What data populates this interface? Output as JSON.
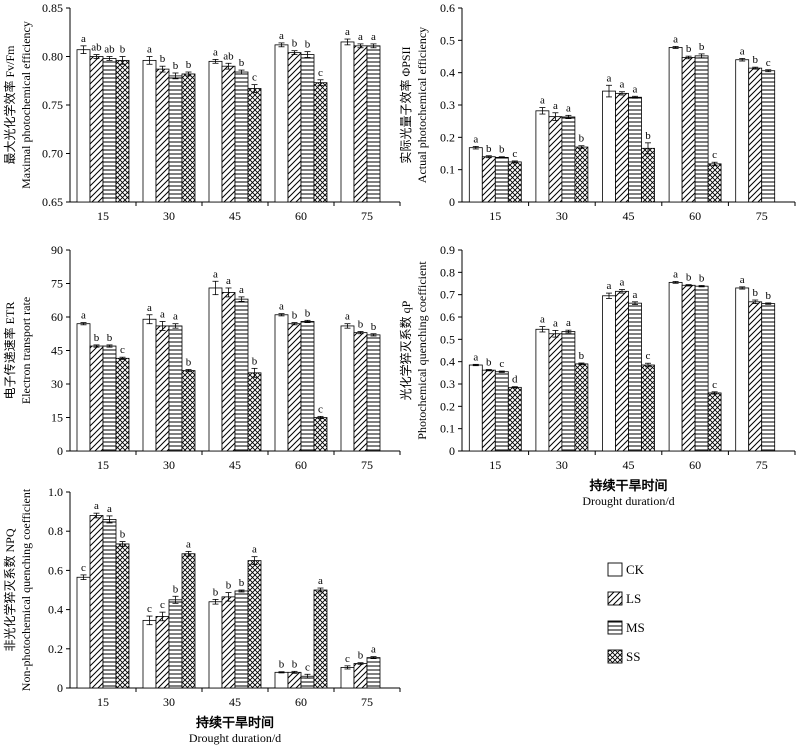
{
  "chart_data": [
    {
      "id": "fvfm",
      "type": "bar",
      "ylabel_cn": "最大光化学效率 Fv/Fm",
      "ylabel_en": "Maximal photochemical efficiency",
      "categories": [
        "15",
        "30",
        "45",
        "60",
        "75"
      ],
      "ylim": [
        0.65,
        0.85
      ],
      "yticks": [
        "0.65",
        "0.70",
        "0.75",
        "0.80",
        "0.85"
      ],
      "series": [
        {
          "name": "CK",
          "values": [
            0.807,
            0.796,
            0.795,
            0.812,
            0.815
          ],
          "err": [
            0.004,
            0.004,
            0.002,
            0.002,
            0.003
          ],
          "sig": [
            "a",
            "a",
            "a",
            "a",
            "a"
          ]
        },
        {
          "name": "LS",
          "values": [
            0.8,
            0.787,
            0.79,
            0.804,
            0.811
          ],
          "err": [
            0.002,
            0.003,
            0.003,
            0.002,
            0.002
          ],
          "sig": [
            "ab",
            "b",
            "ab",
            "b",
            "a"
          ]
        },
        {
          "name": "MS",
          "values": [
            0.798,
            0.78,
            0.784,
            0.802,
            0.811
          ],
          "err": [
            0.002,
            0.003,
            0.002,
            0.003,
            0.002
          ],
          "sig": [
            "ab",
            "b",
            "b",
            "b",
            "a"
          ]
        },
        {
          "name": "SS",
          "values": [
            0.796,
            0.782,
            0.767,
            0.773,
            null
          ],
          "err": [
            0.004,
            0.002,
            0.004,
            0.003,
            null
          ],
          "sig": [
            "b",
            "b",
            "c",
            "c",
            ""
          ]
        }
      ]
    },
    {
      "id": "phipsii",
      "type": "bar",
      "ylabel_cn": "实际光量子效率 ΦPSII",
      "ylabel_en": "Actual photochemical efficiency",
      "categories": [
        "15",
        "30",
        "45",
        "60",
        "75"
      ],
      "ylim": [
        0,
        0.6
      ],
      "yticks": [
        "0",
        "0.1",
        "0.2",
        "0.3",
        "0.4",
        "0.5",
        "0.6"
      ],
      "series": [
        {
          "name": "CK",
          "values": [
            0.168,
            0.282,
            0.343,
            0.478,
            0.44
          ],
          "err": [
            0.004,
            0.01,
            0.018,
            0.003,
            0.004
          ],
          "sig": [
            "a",
            "a",
            "a",
            "a",
            "a"
          ]
        },
        {
          "name": "LS",
          "values": [
            0.14,
            0.264,
            0.336,
            0.447,
            0.414
          ],
          "err": [
            0.003,
            0.012,
            0.005,
            0.004,
            0.003
          ],
          "sig": [
            "b",
            "a",
            "a",
            "b",
            "b"
          ]
        },
        {
          "name": "MS",
          "values": [
            0.138,
            0.263,
            0.324,
            0.452,
            0.406
          ],
          "err": [
            0.002,
            0.005,
            0.003,
            0.006,
            0.003
          ],
          "sig": [
            "b",
            "a",
            "a",
            "b",
            "c"
          ]
        },
        {
          "name": "SS",
          "values": [
            0.124,
            0.17,
            0.166,
            0.118,
            null
          ],
          "err": [
            0.003,
            0.004,
            0.017,
            0.005,
            null
          ],
          "sig": [
            "c",
            "b",
            "b",
            "c",
            ""
          ]
        }
      ]
    },
    {
      "id": "etr",
      "type": "bar",
      "ylabel_cn": "电子传递速率 ETR",
      "ylabel_en": "Electron transport rate",
      "categories": [
        "15",
        "30",
        "45",
        "60",
        "75"
      ],
      "ylim": [
        0,
        90
      ],
      "yticks": [
        "0",
        "15",
        "30",
        "45",
        "60",
        "75",
        "90"
      ],
      "series": [
        {
          "name": "CK",
          "values": [
            57,
            59,
            73,
            61,
            56
          ],
          "err": [
            0.5,
            2,
            3,
            0.5,
            1
          ],
          "sig": [
            "a",
            "a",
            "a",
            "a",
            "a"
          ]
        },
        {
          "name": "LS",
          "values": [
            47,
            56,
            71,
            57,
            53
          ],
          "err": [
            0.5,
            2,
            2,
            0.5,
            0.5
          ],
          "sig": [
            "b",
            "a",
            "a",
            "b",
            "b"
          ]
        },
        {
          "name": "MS",
          "values": [
            47,
            56,
            68,
            58,
            52
          ],
          "err": [
            0.5,
            1,
            1,
            0.5,
            0.5
          ],
          "sig": [
            "b",
            "a",
            "a",
            "b",
            "b"
          ]
        },
        {
          "name": "SS",
          "values": [
            41.5,
            36,
            35,
            15,
            null
          ],
          "err": [
            0.5,
            0.5,
            2,
            0.5,
            null
          ],
          "sig": [
            "c",
            "b",
            "b",
            "c",
            ""
          ]
        }
      ]
    },
    {
      "id": "qp",
      "type": "bar",
      "ylabel_cn": "光化学猝灭系数 qP",
      "ylabel_en": "Photochemical quenching coefficient",
      "categories": [
        "15",
        "30",
        "45",
        "60",
        "75"
      ],
      "ylim": [
        0,
        0.9
      ],
      "yticks": [
        "0",
        "0.1",
        "0.2",
        "0.3",
        "0.4",
        "0.5",
        "0.6",
        "0.7",
        "0.8",
        "0.9"
      ],
      "series": [
        {
          "name": "CK",
          "values": [
            0.385,
            0.545,
            0.695,
            0.755,
            0.73
          ],
          "err": [
            0.003,
            0.012,
            0.012,
            0.004,
            0.005
          ],
          "sig": [
            "a",
            "a",
            "a",
            "a",
            "a"
          ]
        },
        {
          "name": "LS",
          "values": [
            0.362,
            0.525,
            0.715,
            0.742,
            0.668
          ],
          "err": [
            0.003,
            0.015,
            0.008,
            0.003,
            0.008
          ],
          "sig": [
            "b",
            "a",
            "a",
            "b",
            "b"
          ]
        },
        {
          "name": "MS",
          "values": [
            0.355,
            0.535,
            0.662,
            0.738,
            0.66
          ],
          "err": [
            0.003,
            0.006,
            0.006,
            0.003,
            0.003
          ],
          "sig": [
            "c",
            "a",
            "a",
            "b",
            "b"
          ]
        },
        {
          "name": "SS",
          "values": [
            0.285,
            0.39,
            0.385,
            0.26,
            null
          ],
          "err": [
            0.003,
            0.004,
            0.008,
            0.005,
            null
          ],
          "sig": [
            "d",
            "b",
            "c",
            "c",
            ""
          ]
        }
      ]
    },
    {
      "id": "npq",
      "type": "bar",
      "ylabel_cn": "非光化学猝灭系数 NPQ",
      "ylabel_en": "Non-photochemical quenching coefficient",
      "categories": [
        "15",
        "30",
        "45",
        "60",
        "75"
      ],
      "ylim": [
        0,
        1.0
      ],
      "yticks": [
        "0",
        "0.2",
        "0.4",
        "0.6",
        "0.8",
        "1.0"
      ],
      "series": [
        {
          "name": "CK",
          "values": [
            0.565,
            0.345,
            0.44,
            0.08,
            0.105
          ],
          "err": [
            0.012,
            0.022,
            0.012,
            0.003,
            0.008
          ],
          "sig": [
            "c",
            "c",
            "b",
            "b",
            "c"
          ]
        },
        {
          "name": "LS",
          "values": [
            0.88,
            0.365,
            0.465,
            0.08,
            0.125
          ],
          "err": [
            0.012,
            0.022,
            0.022,
            0.005,
            0.004
          ],
          "sig": [
            "a",
            "c",
            "b",
            "b",
            "b"
          ]
        },
        {
          "name": "MS",
          "values": [
            0.86,
            0.45,
            0.495,
            0.06,
            0.155
          ],
          "err": [
            0.018,
            0.018,
            0.005,
            0.01,
            0.005
          ],
          "sig": [
            "a",
            "b",
            "b",
            "c",
            "a"
          ]
        },
        {
          "name": "SS",
          "values": [
            0.735,
            0.685,
            0.65,
            0.5,
            null
          ],
          "err": [
            0.012,
            0.012,
            0.02,
            0.01,
            null
          ],
          "sig": [
            "b",
            "a",
            "a",
            "a",
            ""
          ]
        }
      ]
    }
  ],
  "xtitle_cn": "持续干旱时间",
  "xtitle_en": "Drought duration/d",
  "legend": [
    {
      "name": "CK",
      "pattern": "empty"
    },
    {
      "name": "LS",
      "pattern": "diagonal"
    },
    {
      "name": "MS",
      "pattern": "horizontal"
    },
    {
      "name": "SS",
      "pattern": "crosshatch"
    }
  ]
}
